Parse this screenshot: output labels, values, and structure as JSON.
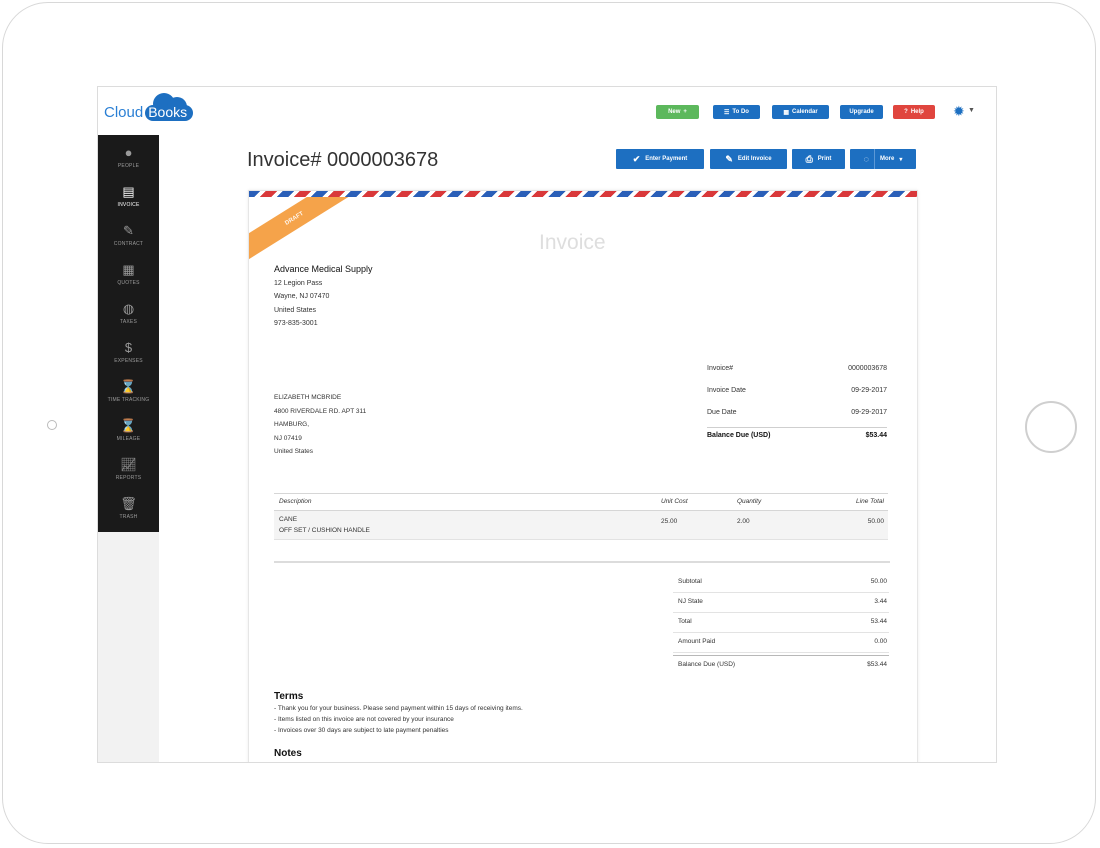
{
  "app": {
    "logo_text_left": "Cloud",
    "logo_text_cloud": "Books"
  },
  "topbar": {
    "new_label": "New",
    "todo_label": "To Do",
    "calendar_label": "Calendar",
    "upgrade_label": "Upgrade",
    "help_label": "Help",
    "colors": {
      "new": "#5cb85c",
      "primary": "#1d6fc1",
      "help": "#e0453e"
    }
  },
  "sidebar": {
    "items": [
      {
        "label": "PEOPLE",
        "icon": "person-icon"
      },
      {
        "label": "INVOICE",
        "icon": "document-icon"
      },
      {
        "label": "CONTRACT",
        "icon": "pen-icon"
      },
      {
        "label": "QUOTES",
        "icon": "calculator-icon"
      },
      {
        "label": "TAXES",
        "icon": "globe-icon"
      },
      {
        "label": "EXPENSES",
        "icon": "dollar-icon"
      },
      {
        "label": "TIME TRACKING",
        "icon": "hourglass-icon"
      },
      {
        "label": "MILEAGE",
        "icon": "hourglass-icon"
      },
      {
        "label": "REPORTS",
        "icon": "chart-icon"
      },
      {
        "label": "TRASH",
        "icon": "trash-icon"
      }
    ]
  },
  "page": {
    "title": "Invoice# 0000003678",
    "actions": {
      "enter_payment": "Enter Payment",
      "edit_invoice": "Edit Invoice",
      "print": "Print",
      "more": "More"
    }
  },
  "invoice": {
    "ribbon": "DRAFT",
    "heading": "Invoice",
    "from": {
      "name": "Advance Medical Supply",
      "address1": "12 Legion Pass",
      "city": "Wayne, NJ 07470",
      "country": "United States",
      "phone": "973-835-3001"
    },
    "to": {
      "name": "ELIZABETH MCBRIDE",
      "address1": "4800 RIVERDALE RD. APT 311",
      "city": "HAMBURG,",
      "state": "NJ 07419",
      "country": "United States"
    },
    "meta": {
      "invoice_label": "Invoice#",
      "invoice_value": "0000003678",
      "date_label": "Invoice Date",
      "date_value": "09-29-2017",
      "due_label": "Due Date",
      "due_value": "09-29-2017",
      "balance_label": "Balance Due (USD)",
      "balance_value": "$53.44"
    },
    "items": {
      "headers": {
        "description": "Description",
        "unit_cost": "Unit Cost",
        "quantity": "Quantity",
        "line_total": "Line Total"
      },
      "rows": [
        {
          "line1": "CANE",
          "line2": "OFF SET / CUSHION HANDLE",
          "unit_cost": "25.00",
          "quantity": "2.00",
          "line_total": "50.00"
        }
      ]
    },
    "totals": {
      "subtotal_label": "Subtotal",
      "subtotal_value": "50.00",
      "tax_label": "NJ State",
      "tax_value": "3.44",
      "total_label": "Total",
      "total_value": "53.44",
      "paid_label": "Amount Paid",
      "paid_value": "0.00",
      "balance_label": "Balance Due (USD)",
      "balance_value": "$53.44"
    },
    "terms": {
      "heading": "Terms",
      "lines": [
        "- Thank you for your business. Please send payment within 15 days of receiving items.",
        "- Items listed on this invoice are not covered by your insurance",
        "- Invoices over 30 days are subject to late payment penalties"
      ]
    },
    "notes_heading": "Notes"
  }
}
